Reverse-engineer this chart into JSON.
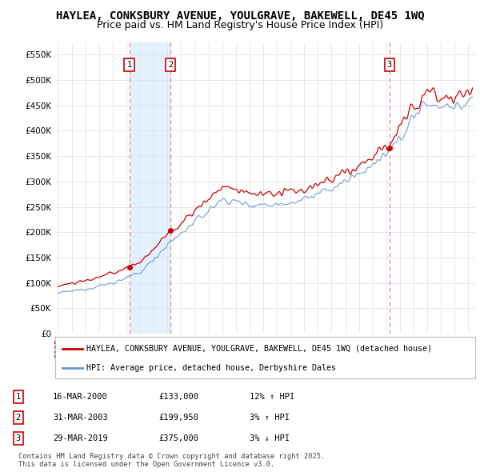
{
  "title": "HAYLEA, CONKSBURY AVENUE, YOULGRAVE, BAKEWELL, DE45 1WQ",
  "subtitle": "Price paid vs. HM Land Registry's House Price Index (HPI)",
  "ylim": [
    0,
    575000
  ],
  "yticks": [
    0,
    50000,
    100000,
    150000,
    200000,
    250000,
    300000,
    350000,
    400000,
    450000,
    500000,
    550000
  ],
  "ytick_labels": [
    "£0",
    "£50K",
    "£100K",
    "£150K",
    "£200K",
    "£250K",
    "£300K",
    "£350K",
    "£400K",
    "£450K",
    "£500K",
    "£550K"
  ],
  "background_color": "#ffffff",
  "plot_bg_color": "#ffffff",
  "grid_color": "#dddddd",
  "sale_color": "#cc0000",
  "hpi_color": "#aac8e8",
  "hpi_line_color": "#6699cc",
  "annotation_box_color": "#cc0000",
  "vline_color": "#e88888",
  "shade_color": "#ddeeff",
  "sales": [
    {
      "year": 2000.21,
      "price": 133000,
      "label": "1"
    },
    {
      "year": 2003.24,
      "price": 199950,
      "label": "2"
    },
    {
      "year": 2019.24,
      "price": 375000,
      "label": "3"
    }
  ],
  "legend_entries": [
    "HAYLEA, CONKSBURY AVENUE, YOULGRAVE, BAKEWELL, DE45 1WQ (detached house)",
    "HPI: Average price, detached house, Derbyshire Dales"
  ],
  "table_rows": [
    {
      "num": "1",
      "date": "16-MAR-2000",
      "price": "£133,000",
      "hpi": "12% ↑ HPI"
    },
    {
      "num": "2",
      "date": "31-MAR-2003",
      "price": "£199,950",
      "hpi": "3% ↑ HPI"
    },
    {
      "num": "3",
      "date": "29-MAR-2019",
      "price": "£375,000",
      "hpi": "3% ↓ HPI"
    }
  ],
  "footer": "Contains HM Land Registry data © Crown copyright and database right 2025.\nThis data is licensed under the Open Government Licence v3.0.",
  "title_fontsize": 10,
  "subtitle_fontsize": 9
}
